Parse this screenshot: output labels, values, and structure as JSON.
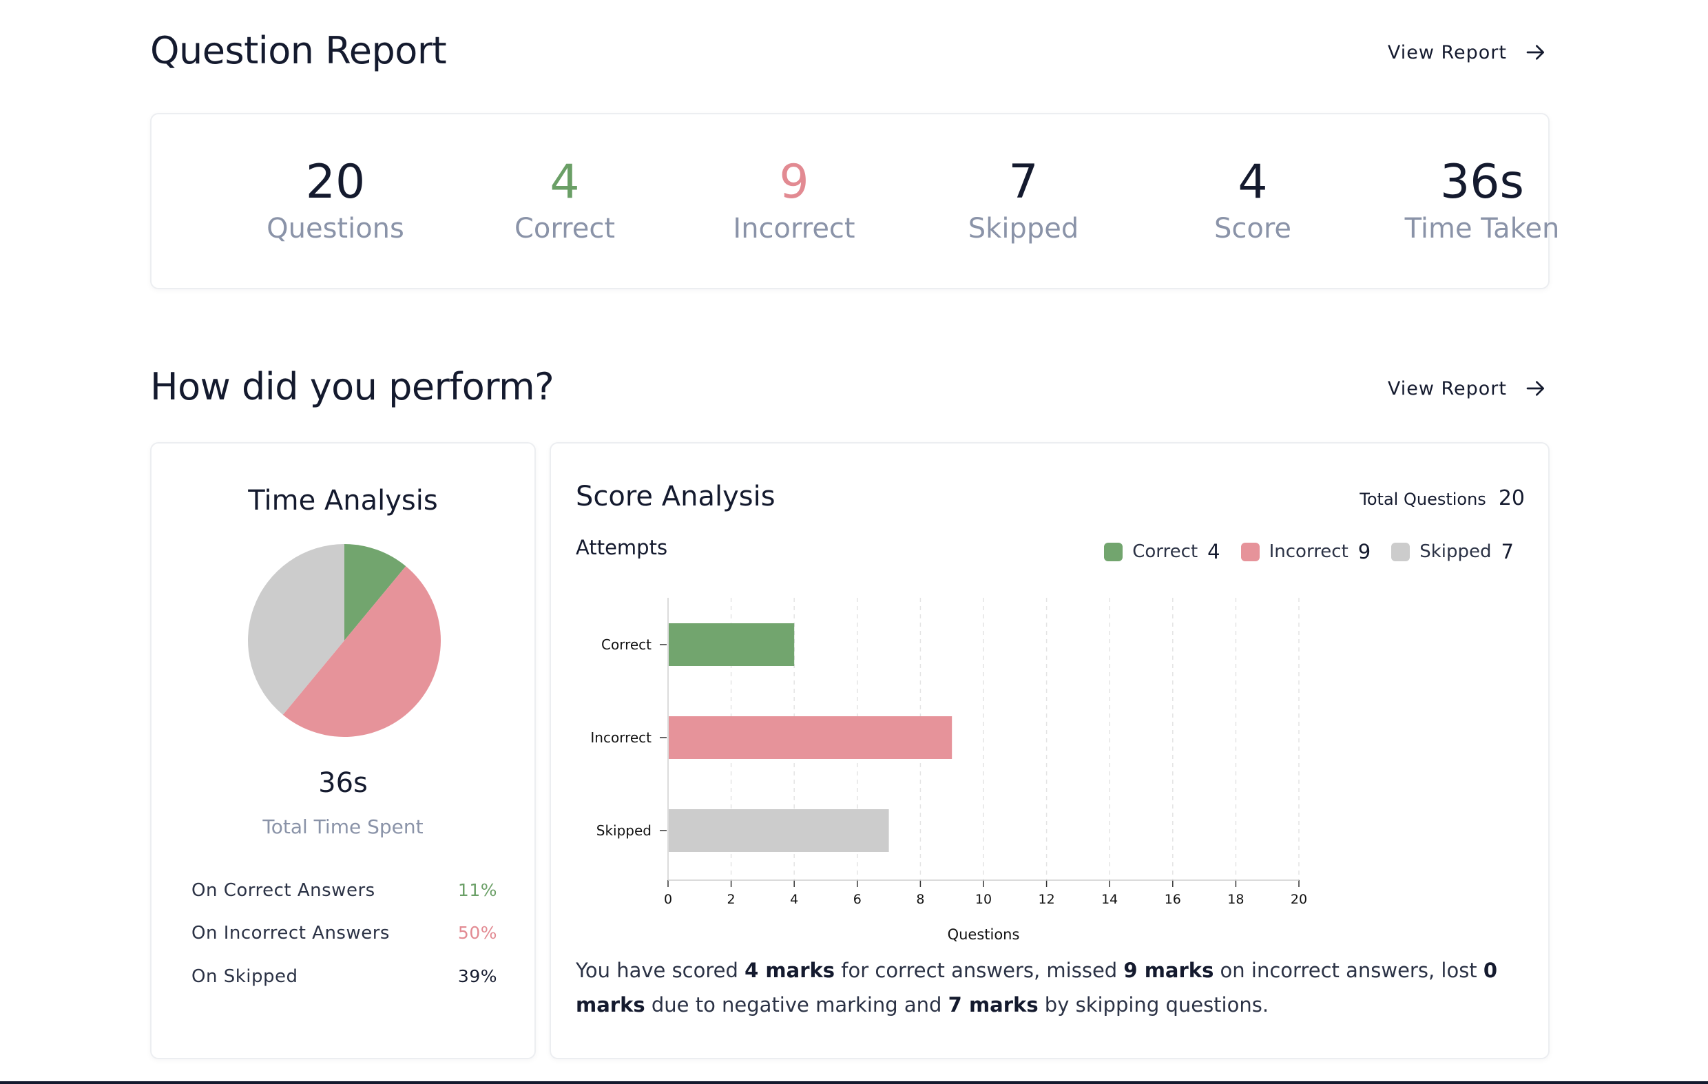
{
  "question_report": {
    "title": "Question Report",
    "view_report": "View Report",
    "stats": [
      {
        "value": "20",
        "label": "Questions",
        "color": "#141a2e"
      },
      {
        "value": "4",
        "label": "Correct",
        "color": "#6a9f66"
      },
      {
        "value": "9",
        "label": "Incorrect",
        "color": "#e28a92"
      },
      {
        "value": "7",
        "label": "Skipped",
        "color": "#141a2e"
      },
      {
        "value": "4",
        "label": "Score",
        "color": "#141a2e"
      },
      {
        "value": "36s",
        "label": "Time Taken",
        "color": "#141a2e"
      }
    ]
  },
  "performance": {
    "title": "How did you perform?",
    "view_report": "View Report"
  },
  "time_analysis": {
    "title": "Time Analysis",
    "total": "36s",
    "total_label": "Total Time Spent",
    "rows": [
      {
        "label": "On Correct Answers",
        "percent": "11%",
        "value": 11,
        "color": "#6a9f66"
      },
      {
        "label": "On Incorrect Answers",
        "percent": "50%",
        "value": 50,
        "color": "#e28a92"
      },
      {
        "label": "On Skipped",
        "percent": "39%",
        "value": 39,
        "color": "#141a2e"
      }
    ],
    "pie_colors": [
      "#72a56e",
      "#e6939a",
      "#cccccc"
    ]
  },
  "score_analysis": {
    "title": "Score Analysis",
    "total_questions_label": "Total Questions",
    "total_questions": "20",
    "attempts_label": "Attempts",
    "legend": [
      {
        "label": "Correct",
        "count": "4",
        "color": "#72a56e"
      },
      {
        "label": "Incorrect",
        "count": "9",
        "color": "#e6939a"
      },
      {
        "label": "Skipped",
        "count": "7",
        "color": "#cccccc"
      }
    ],
    "summary": {
      "p1": "You have scored ",
      "b1": "4 marks",
      "p2": " for correct answers, missed ",
      "b2": "9 marks",
      "p3": " on incorrect answers, lost ",
      "b3": "0 marks",
      "p4": " due to negative marking and ",
      "b4": "7 marks",
      "p5": " by skipping questions."
    }
  },
  "chart_data": {
    "type": "bar",
    "orientation": "horizontal",
    "categories": [
      "Correct",
      "Incorrect",
      "Skipped"
    ],
    "values": [
      4,
      9,
      7
    ],
    "colors": [
      "#72a56e",
      "#e6939a",
      "#cccccc"
    ],
    "xlabel": "Questions",
    "ylabel": "",
    "xlim": [
      0,
      20
    ],
    "xticks": [
      0,
      2,
      4,
      6,
      8,
      10,
      12,
      14,
      16,
      18,
      20
    ],
    "grid": true
  }
}
